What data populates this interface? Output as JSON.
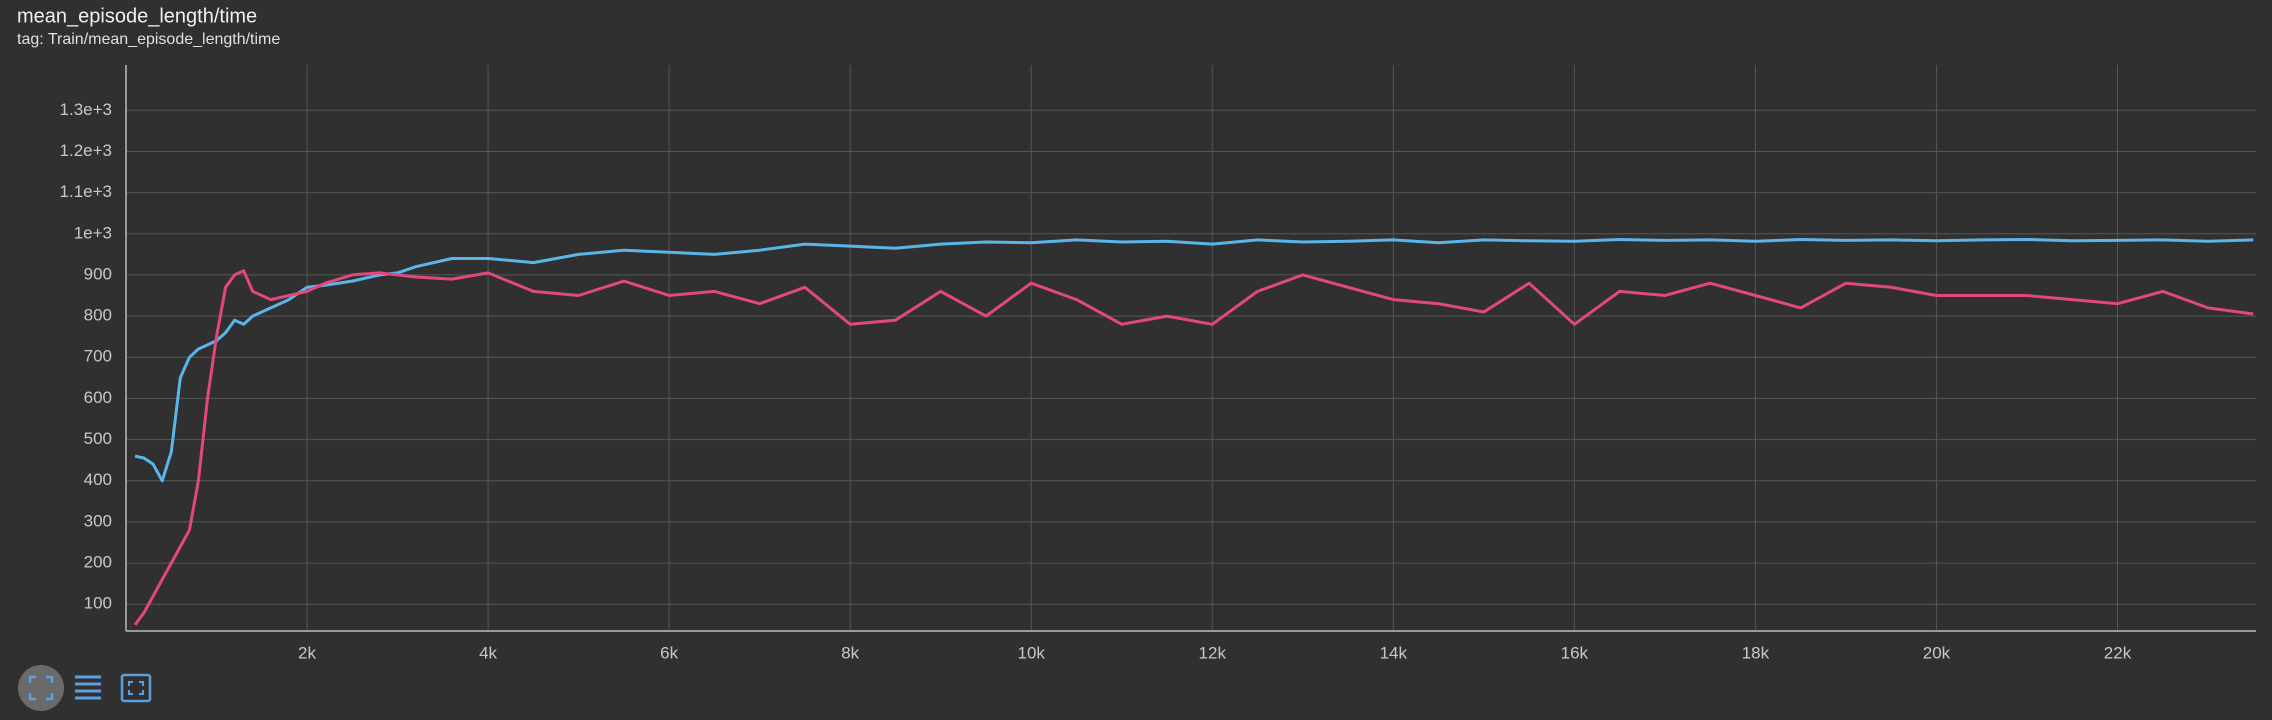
{
  "header": {
    "title": "mean_episode_length/time",
    "subtitle": "tag: Train/mean_episode_length/time"
  },
  "chart_data": {
    "type": "line",
    "x": [
      100,
      200,
      300,
      400,
      500,
      600,
      700,
      800,
      900,
      1000,
      1100,
      1200,
      1300,
      1400,
      1600,
      1800,
      2000,
      2200,
      2500,
      2800,
      3000,
      3200,
      3600,
      4000,
      4500,
      5000,
      5500,
      6000,
      6500,
      7000,
      7500,
      8000,
      8500,
      9000,
      9500,
      10000,
      10500,
      11000,
      11500,
      12000,
      12500,
      13000,
      13500,
      14000,
      14500,
      15000,
      15500,
      16000,
      16500,
      17000,
      17500,
      18000,
      18500,
      19000,
      19500,
      20000,
      20500,
      21000,
      21500,
      22000,
      22500,
      23000,
      23500
    ],
    "series": [
      {
        "color": "#5ab6ea",
        "values": [
          460,
          455,
          440,
          400,
          470,
          650,
          700,
          720,
          730,
          740,
          760,
          790,
          780,
          800,
          820,
          840,
          870,
          875,
          885,
          900,
          905,
          920,
          940,
          940,
          930,
          950,
          960,
          955,
          950,
          960,
          975,
          970,
          965,
          975,
          980,
          978,
          985,
          980,
          982,
          975,
          985,
          980,
          982,
          985,
          978,
          985,
          983,
          982,
          986,
          984,
          985,
          982,
          986,
          984,
          985,
          983,
          985,
          986,
          983,
          984,
          985,
          982,
          985
        ]
      },
      {
        "color": "#e2487c",
        "values": [
          50,
          80,
          120,
          160,
          200,
          240,
          280,
          400,
          600,
          750,
          870,
          900,
          910,
          860,
          840,
          850,
          860,
          880,
          900,
          905,
          900,
          895,
          890,
          905,
          860,
          850,
          885,
          850,
          860,
          830,
          870,
          780,
          790,
          860,
          800,
          880,
          840,
          780,
          800,
          780,
          860,
          900,
          870,
          840,
          830,
          810,
          880,
          780,
          860,
          850,
          880,
          850,
          820,
          880,
          870,
          850,
          850,
          850,
          840,
          830,
          860,
          820,
          805
        ]
      }
    ],
    "xlim": [
      0,
      23530
    ],
    "ylim": [
      35,
      1410
    ],
    "xticks": [
      {
        "value": 2000,
        "label": "2k"
      },
      {
        "value": 4000,
        "label": "4k"
      },
      {
        "value": 6000,
        "label": "6k"
      },
      {
        "value": 8000,
        "label": "8k"
      },
      {
        "value": 10000,
        "label": "10k"
      },
      {
        "value": 12000,
        "label": "12k"
      },
      {
        "value": 14000,
        "label": "14k"
      },
      {
        "value": 16000,
        "label": "16k"
      },
      {
        "value": 18000,
        "label": "18k"
      },
      {
        "value": 20000,
        "label": "20k"
      },
      {
        "value": 22000,
        "label": "22k"
      }
    ],
    "yticks": [
      100,
      200,
      300,
      400,
      500,
      600,
      700,
      800,
      900,
      {
        "value": 1000,
        "label": "1e+3"
      },
      {
        "value": 1100,
        "label": "1.1e+3"
      },
      {
        "value": 1200,
        "label": "1.2e+3"
      },
      {
        "value": 1300,
        "label": "1.3e+3"
      }
    ],
    "grid": true
  }
}
